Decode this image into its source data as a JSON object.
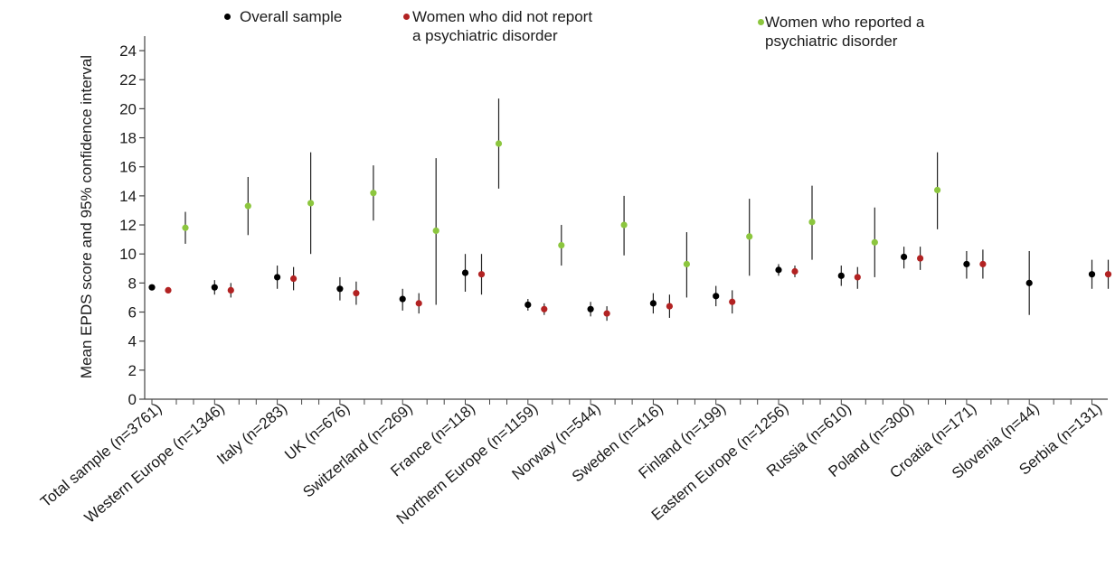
{
  "chart_data": {
    "type": "scatter",
    "subtype": "error-bar",
    "title": "",
    "xlabel": "",
    "ylabel": "Mean EPDS score and 95% confidence interval",
    "ylim": [
      0,
      25
    ],
    "yticks": [
      0,
      2,
      4,
      6,
      8,
      10,
      12,
      14,
      16,
      18,
      20,
      22,
      24
    ],
    "grid": false,
    "legend_position": "top",
    "colors": {
      "overall": "#000000",
      "no_disorder": "#b22222",
      "disorder": "#8cc63e",
      "errorbar": "#222222",
      "axis": "#444444"
    },
    "categories": [
      "Total sample (n=3761)",
      "Western Europe (n=1346)",
      "Italy (n=283)",
      "UK (n=676)",
      "Switzerland (n=269)",
      "France (n=118)",
      "Northern Europe (n=1159)",
      "Norway (n=544)",
      "Sweden (n=416)",
      "Finland (n=199)",
      "Eastern Europe (n=1256)",
      "Russia (n=610)",
      "Poland (n=300)",
      "Croatia (n=171)",
      "Slovenia (n=44)",
      "Serbia (n=131)"
    ],
    "series": [
      {
        "name": "Overall sample",
        "key": "overall",
        "values": [
          7.7,
          7.7,
          8.4,
          7.6,
          6.9,
          8.7,
          6.5,
          6.2,
          6.6,
          7.1,
          8.9,
          8.5,
          9.8,
          9.3,
          8.0,
          8.6
        ],
        "lower": [
          7.5,
          7.2,
          7.6,
          6.8,
          6.1,
          7.4,
          6.1,
          5.7,
          5.9,
          6.4,
          8.5,
          7.8,
          9.0,
          8.3,
          5.8,
          7.6
        ],
        "upper": [
          7.9,
          8.2,
          9.2,
          8.4,
          7.6,
          10.0,
          6.9,
          6.7,
          7.3,
          7.8,
          9.3,
          9.2,
          10.5,
          10.2,
          10.2,
          9.6
        ]
      },
      {
        "name": "Women who did not report\na psychiatric disorder",
        "key": "no_disorder",
        "values": [
          7.5,
          7.5,
          8.3,
          7.3,
          6.6,
          8.6,
          6.2,
          5.9,
          6.4,
          6.7,
          8.8,
          8.4,
          9.7,
          9.3,
          null,
          8.6
        ],
        "lower": [
          7.3,
          7.0,
          7.5,
          6.5,
          5.9,
          7.2,
          5.8,
          5.4,
          5.6,
          5.9,
          8.4,
          7.6,
          8.9,
          8.3,
          null,
          7.6
        ],
        "upper": [
          7.7,
          8.0,
          9.1,
          8.1,
          7.3,
          10.0,
          6.6,
          6.4,
          7.2,
          7.5,
          9.2,
          9.1,
          10.5,
          10.3,
          null,
          9.6
        ]
      },
      {
        "name": "Women who reported a\npsychiatric disorder",
        "key": "disorder",
        "values": [
          11.8,
          13.3,
          13.5,
          14.2,
          11.6,
          17.6,
          10.6,
          12.0,
          9.3,
          11.2,
          12.2,
          10.8,
          14.4,
          null,
          null,
          null
        ],
        "lower": [
          10.7,
          11.3,
          10.0,
          12.3,
          6.5,
          14.5,
          9.2,
          9.9,
          7.0,
          8.5,
          9.6,
          8.4,
          11.7,
          null,
          null,
          null
        ],
        "upper": [
          12.9,
          15.3,
          17.0,
          16.1,
          16.6,
          20.7,
          12.0,
          14.0,
          11.5,
          13.8,
          14.7,
          13.2,
          17.0,
          null,
          null,
          null
        ]
      }
    ]
  }
}
